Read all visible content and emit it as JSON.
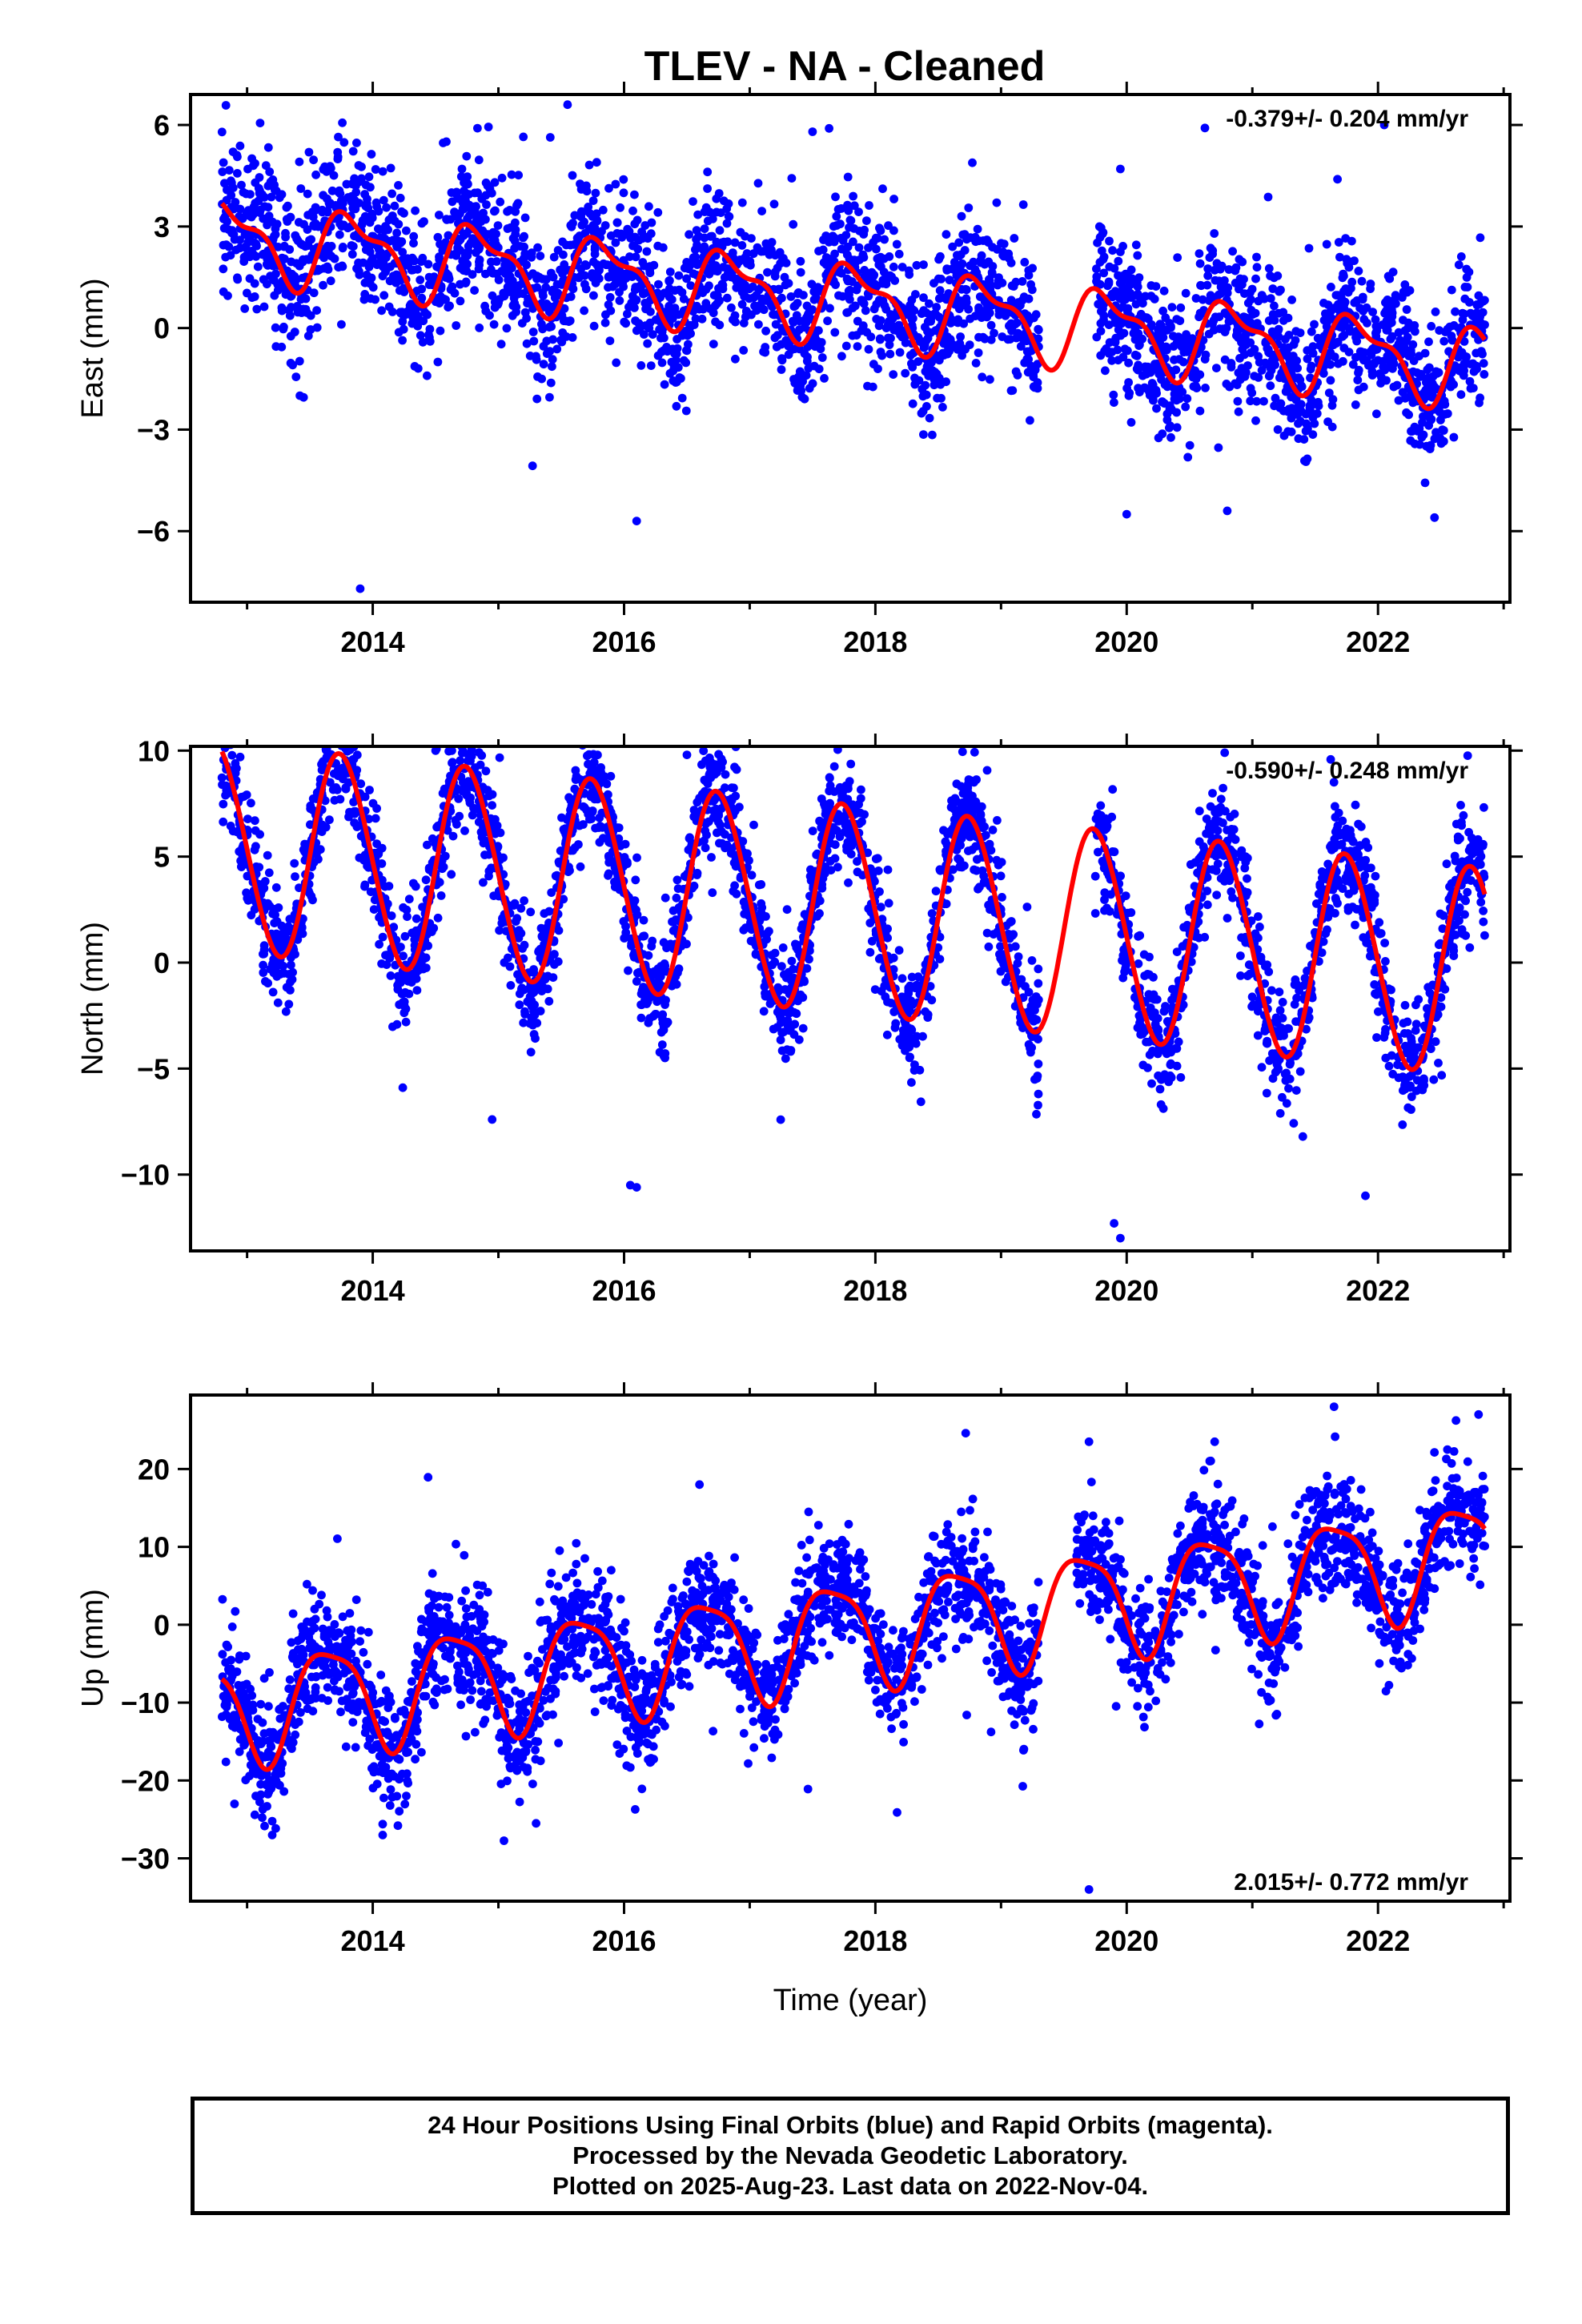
{
  "title": "TLEV  - NA - Cleaned",
  "footer": {
    "line1": "24 Hour Positions Using Final Orbits (blue) and Rapid Orbits (magenta).",
    "line2": "Processed by the Nevada Geodetic Laboratory.",
    "line3": "Plotted on 2025-Aug-23. Last data on 2022-Nov-04."
  },
  "colors": {
    "points": "#0000ff",
    "model": "#ff0000",
    "frame": "#000000"
  },
  "chart_data": [
    {
      "type": "scatter",
      "ylabel": "East (mm)",
      "xlabel": "",
      "rate_label": "-0.379+/- 0.204 mm/yr",
      "rate_position": "top-right",
      "xlim": [
        2012.55,
        2023.05
      ],
      "ylim": [
        -8.1,
        6.9
      ],
      "xticks": [
        2014,
        2016,
        2018,
        2020,
        2022
      ],
      "yticks": [
        -6,
        -3,
        0,
        3,
        6
      ],
      "ytick_labels": [
        "−6",
        "−3",
        "0",
        "3",
        "6"
      ],
      "model": {
        "name": "",
        "t0": 2012.8,
        "t1": 2022.85,
        "offset": 0.9,
        "trend": -0.379,
        "trend_ref": 2017.5,
        "annual_amp": 1.05,
        "annual_phase": 0.6,
        "semiannual_amp": 0.45,
        "semiannual_phase": 0.55
      },
      "scatter": {
        "count": 3200,
        "t0": 2012.8,
        "t1": 2022.85,
        "sigma": 1.05,
        "seed": 11,
        "gaps": [
          [
            2019.3,
            2019.75
          ]
        ]
      },
      "outliers": [
        [
          2013.9,
          -7.7
        ],
        [
          2016.1,
          -5.7
        ],
        [
          2019.95,
          4.7
        ],
        [
          2020.0,
          -5.5
        ],
        [
          2020.8,
          -5.4
        ],
        [
          2022.05,
          6.0
        ],
        [
          2022.45,
          -5.6
        ],
        [
          2015.55,
          6.6
        ],
        [
          2017.5,
          5.8
        ]
      ]
    },
    {
      "type": "scatter",
      "ylabel": "North (mm)",
      "xlabel": "",
      "rate_label": "-0.590+/- 0.248 mm/yr",
      "rate_position": "top-right",
      "xlim": [
        2012.55,
        2023.05
      ],
      "ylim": [
        -13.6,
        10.2
      ],
      "xticks": [
        2014,
        2016,
        2018,
        2020,
        2022
      ],
      "yticks": [
        -10,
        -5,
        0,
        5,
        10
      ],
      "ytick_labels": [
        "−10",
        "−5",
        "0",
        "5",
        "10"
      ],
      "model": {
        "name": "",
        "t0": 2012.8,
        "t1": 2022.85,
        "offset": 2.7,
        "trend": -0.59,
        "trend_ref": 2017.5,
        "annual_amp": 4.9,
        "annual_phase": 0.5,
        "semiannual_amp": 0.3,
        "semiannual_phase": 0.5
      },
      "scatter": {
        "count": 3200,
        "t0": 2012.8,
        "t1": 2022.85,
        "sigma": 1.3,
        "seed": 23,
        "gaps": [
          [
            2019.3,
            2019.75
          ]
        ]
      },
      "outliers": [
        [
          2013.85,
          9.6
        ],
        [
          2014.5,
          10.0
        ],
        [
          2016.05,
          -10.5
        ],
        [
          2016.1,
          -10.6
        ],
        [
          2014.95,
          -7.4
        ],
        [
          2019.95,
          -13.0
        ],
        [
          2019.9,
          -12.3
        ],
        [
          2021.9,
          -11.0
        ],
        [
          2016.5,
          9.8
        ]
      ]
    },
    {
      "type": "scatter",
      "ylabel": "Up (mm)",
      "xlabel": "Time (year)",
      "rate_label": "2.015+/- 0.772 mm/yr",
      "rate_position": "bottom-right",
      "xlim": [
        2012.55,
        2023.05
      ],
      "ylim": [
        -35.5,
        29.5
      ],
      "xticks": [
        2014,
        2016,
        2018,
        2020,
        2022
      ],
      "yticks": [
        -30,
        -20,
        -10,
        0,
        10,
        20
      ],
      "ytick_labels": [
        "−30",
        "−20",
        "−10",
        "0",
        "10",
        "20"
      ],
      "model": {
        "name": "",
        "t0": 2012.8,
        "t1": 2022.85,
        "offset": -1.5,
        "trend": 2.015,
        "trend_ref": 2017.5,
        "annual_amp": 6.8,
        "annual_phase": 0.4,
        "semiannual_amp": 1.6,
        "semiannual_phase": 0.3
      },
      "scatter": {
        "count": 3200,
        "t0": 2012.8,
        "t1": 2022.85,
        "sigma": 3.8,
        "seed": 37,
        "gaps": [
          [
            2019.3,
            2019.6
          ]
        ]
      },
      "outliers": [
        [
          2019.7,
          -34.0
        ],
        [
          2013.2,
          -27.0
        ],
        [
          2014.2,
          -25.8
        ],
        [
          2015.3,
          -25.5
        ],
        [
          2021.65,
          28.0
        ],
        [
          2022.8,
          27.0
        ],
        [
          2019.7,
          23.5
        ],
        [
          2020.7,
          23.5
        ],
        [
          2016.6,
          18.0
        ],
        [
          2012.9,
          -23.0
        ]
      ]
    }
  ]
}
